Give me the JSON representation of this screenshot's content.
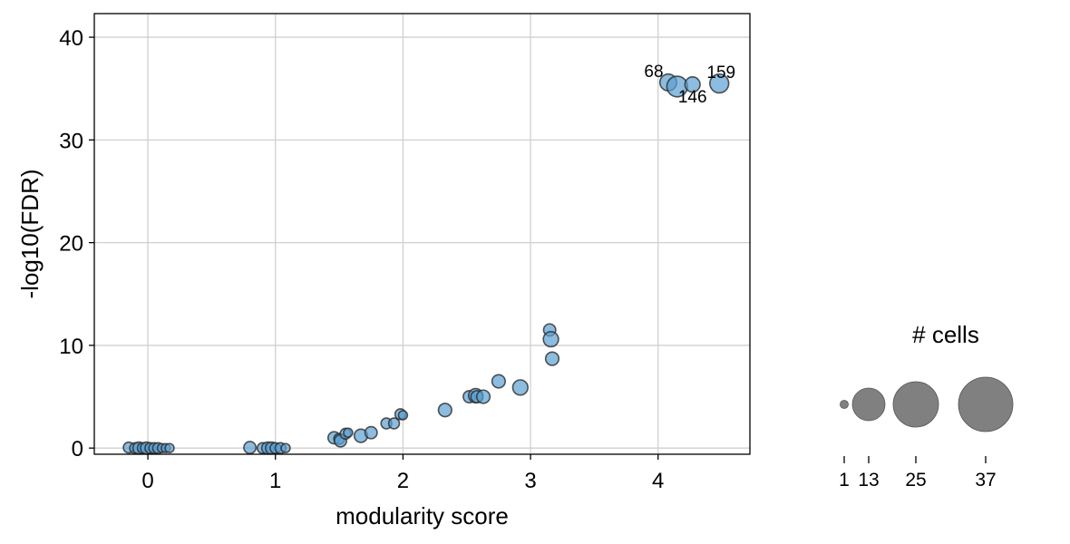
{
  "chart_data": {
    "type": "scatter",
    "title": "",
    "xlabel": "modularity score",
    "ylabel": "-log10(FDR)",
    "xlim": [
      -0.42,
      4.72
    ],
    "ylim": [
      -0.6,
      42.3
    ],
    "xticks": [
      "0",
      "1",
      "2",
      "3",
      "4"
    ],
    "xtick_values": [
      0,
      1,
      2,
      3,
      4
    ],
    "yticks": [
      "0",
      "10",
      "20",
      "30",
      "40"
    ],
    "ytick_values": [
      0,
      10,
      20,
      30,
      40
    ],
    "grid": true,
    "point_color": "#5b9fd2",
    "edge_color": "#2b2b2b",
    "points": [
      {
        "x": -0.15,
        "y": 0.05,
        "cells": 2
      },
      {
        "x": -0.1,
        "y": 0.0,
        "cells": 2
      },
      {
        "x": -0.07,
        "y": 0.0,
        "cells": 3
      },
      {
        "x": -0.04,
        "y": 0.0,
        "cells": 2
      },
      {
        "x": -0.01,
        "y": 0.0,
        "cells": 3
      },
      {
        "x": 0.02,
        "y": 0.0,
        "cells": 2
      },
      {
        "x": 0.05,
        "y": 0.0,
        "cells": 2
      },
      {
        "x": 0.08,
        "y": 0.0,
        "cells": 2
      },
      {
        "x": 0.11,
        "y": 0.0,
        "cells": 1
      },
      {
        "x": 0.14,
        "y": 0.0,
        "cells": 1
      },
      {
        "x": 0.17,
        "y": 0.0,
        "cells": 1
      },
      {
        "x": 0.8,
        "y": 0.05,
        "cells": 3
      },
      {
        "x": 0.9,
        "y": 0.0,
        "cells": 2
      },
      {
        "x": 0.94,
        "y": 0.0,
        "cells": 3
      },
      {
        "x": 0.97,
        "y": 0.0,
        "cells": 3
      },
      {
        "x": 1.0,
        "y": 0.0,
        "cells": 2
      },
      {
        "x": 1.04,
        "y": 0.0,
        "cells": 2
      },
      {
        "x": 1.08,
        "y": 0.0,
        "cells": 1
      },
      {
        "x": 1.46,
        "y": 1.0,
        "cells": 3
      },
      {
        "x": 1.5,
        "y": 0.9,
        "cells": 2
      },
      {
        "x": 1.51,
        "y": 0.7,
        "cells": 3
      },
      {
        "x": 1.55,
        "y": 1.4,
        "cells": 2
      },
      {
        "x": 1.57,
        "y": 1.5,
        "cells": 1
      },
      {
        "x": 1.67,
        "y": 1.2,
        "cells": 4
      },
      {
        "x": 1.75,
        "y": 1.5,
        "cells": 3
      },
      {
        "x": 1.87,
        "y": 2.4,
        "cells": 2
      },
      {
        "x": 1.93,
        "y": 2.4,
        "cells": 2
      },
      {
        "x": 1.98,
        "y": 3.3,
        "cells": 2
      },
      {
        "x": 2.0,
        "y": 3.2,
        "cells": 1
      },
      {
        "x": 2.33,
        "y": 3.7,
        "cells": 4
      },
      {
        "x": 2.52,
        "y": 5.0,
        "cells": 3
      },
      {
        "x": 2.57,
        "y": 5.1,
        "cells": 5
      },
      {
        "x": 2.58,
        "y": 5.0,
        "cells": 3
      },
      {
        "x": 2.63,
        "y": 5.0,
        "cells": 4
      },
      {
        "x": 2.75,
        "y": 6.5,
        "cells": 4
      },
      {
        "x": 2.92,
        "y": 5.9,
        "cells": 6
      },
      {
        "x": 3.15,
        "y": 11.5,
        "cells": 3
      },
      {
        "x": 3.16,
        "y": 10.6,
        "cells": 6
      },
      {
        "x": 3.17,
        "y": 8.7,
        "cells": 4
      },
      {
        "x": 4.08,
        "y": 35.6,
        "cells": 8,
        "label": "68"
      },
      {
        "x": 4.15,
        "y": 35.2,
        "cells": 14
      },
      {
        "x": 4.27,
        "y": 35.4,
        "cells": 6,
        "label": "146"
      },
      {
        "x": 4.48,
        "y": 35.5,
        "cells": 11,
        "label": "159"
      }
    ],
    "annotations": [
      {
        "text": "68",
        "x": 4.08,
        "y": 35.6
      },
      {
        "text": "146",
        "x": 4.27,
        "y": 35.4
      },
      {
        "text": "159",
        "x": 4.48,
        "y": 35.5
      }
    ],
    "size_legend": {
      "title": "# cells",
      "color": "#808080",
      "entries": [
        {
          "label": "1",
          "cells": 1
        },
        {
          "label": "13",
          "cells": 13
        },
        {
          "label": "25",
          "cells": 25
        },
        {
          "label": "37",
          "cells": 37
        }
      ]
    }
  }
}
